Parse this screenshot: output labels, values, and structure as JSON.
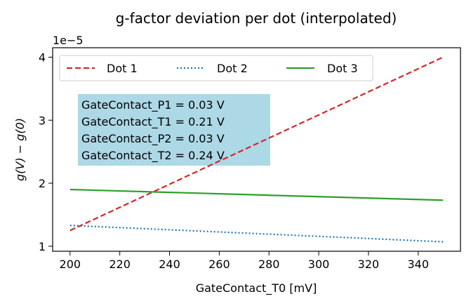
{
  "chart_data": {
    "type": "line",
    "title": "g-factor deviation per dot (interpolated)",
    "xlabel": "GateContact_T0 [mV]",
    "ylabel": "g(V) − g(0)",
    "y_offset_label": "1e−5",
    "xlim": [
      193,
      357
    ],
    "ylim": [
      0.92,
      4.15
    ],
    "x_ticks": [
      200,
      220,
      240,
      260,
      280,
      300,
      320,
      340
    ],
    "y_ticks": [
      1,
      2,
      3,
      4
    ],
    "legend_position": "upper-left",
    "grid": false,
    "series": [
      {
        "name": "Dot 1",
        "color": "#d62728",
        "style": "dashed",
        "x": [
          200,
          350
        ],
        "y": [
          1.25,
          4.0
        ]
      },
      {
        "name": "Dot 2",
        "color": "#1f77b4",
        "style": "dotted",
        "x": [
          200,
          350
        ],
        "y": [
          1.33,
          1.07
        ]
      },
      {
        "name": "Dot 3",
        "color": "#2ca02c",
        "style": "solid",
        "x": [
          200,
          350
        ],
        "y": [
          1.9,
          1.73
        ]
      }
    ],
    "annotation": {
      "lines": [
        "GateContact_P1 = 0.03 V",
        "GateContact_T1 = 0.21 V",
        "GateContact_P2 = 0.03 V",
        "GateContact_T2 = 0.24 V"
      ],
      "background": "#add8e6"
    }
  }
}
